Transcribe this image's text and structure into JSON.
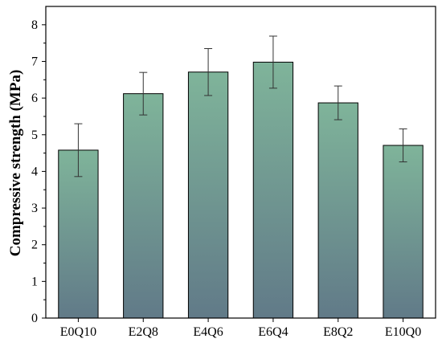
{
  "chart_data": {
    "type": "bar",
    "title": "",
    "xlabel": "",
    "ylabel": "Compressive strength (MPa)",
    "categories": [
      "E0Q10",
      "E2Q8",
      "E4Q6",
      "E6Q4",
      "E8Q2",
      "E10Q0"
    ],
    "values": [
      4.58,
      6.12,
      6.71,
      6.98,
      5.87,
      4.71
    ],
    "errors": [
      0.72,
      0.58,
      0.64,
      0.71,
      0.46,
      0.45
    ],
    "ylim": [
      0,
      8.5
    ],
    "yticks": [
      0,
      1,
      2,
      3,
      4,
      5,
      6,
      7,
      8
    ],
    "grid": false,
    "legend": "none",
    "colors": {
      "bar_top": "#7fb49a",
      "bar_bottom": "#617a88",
      "bar_edge": "#000000",
      "axis": "#000000",
      "error_bar": "#333333"
    }
  }
}
